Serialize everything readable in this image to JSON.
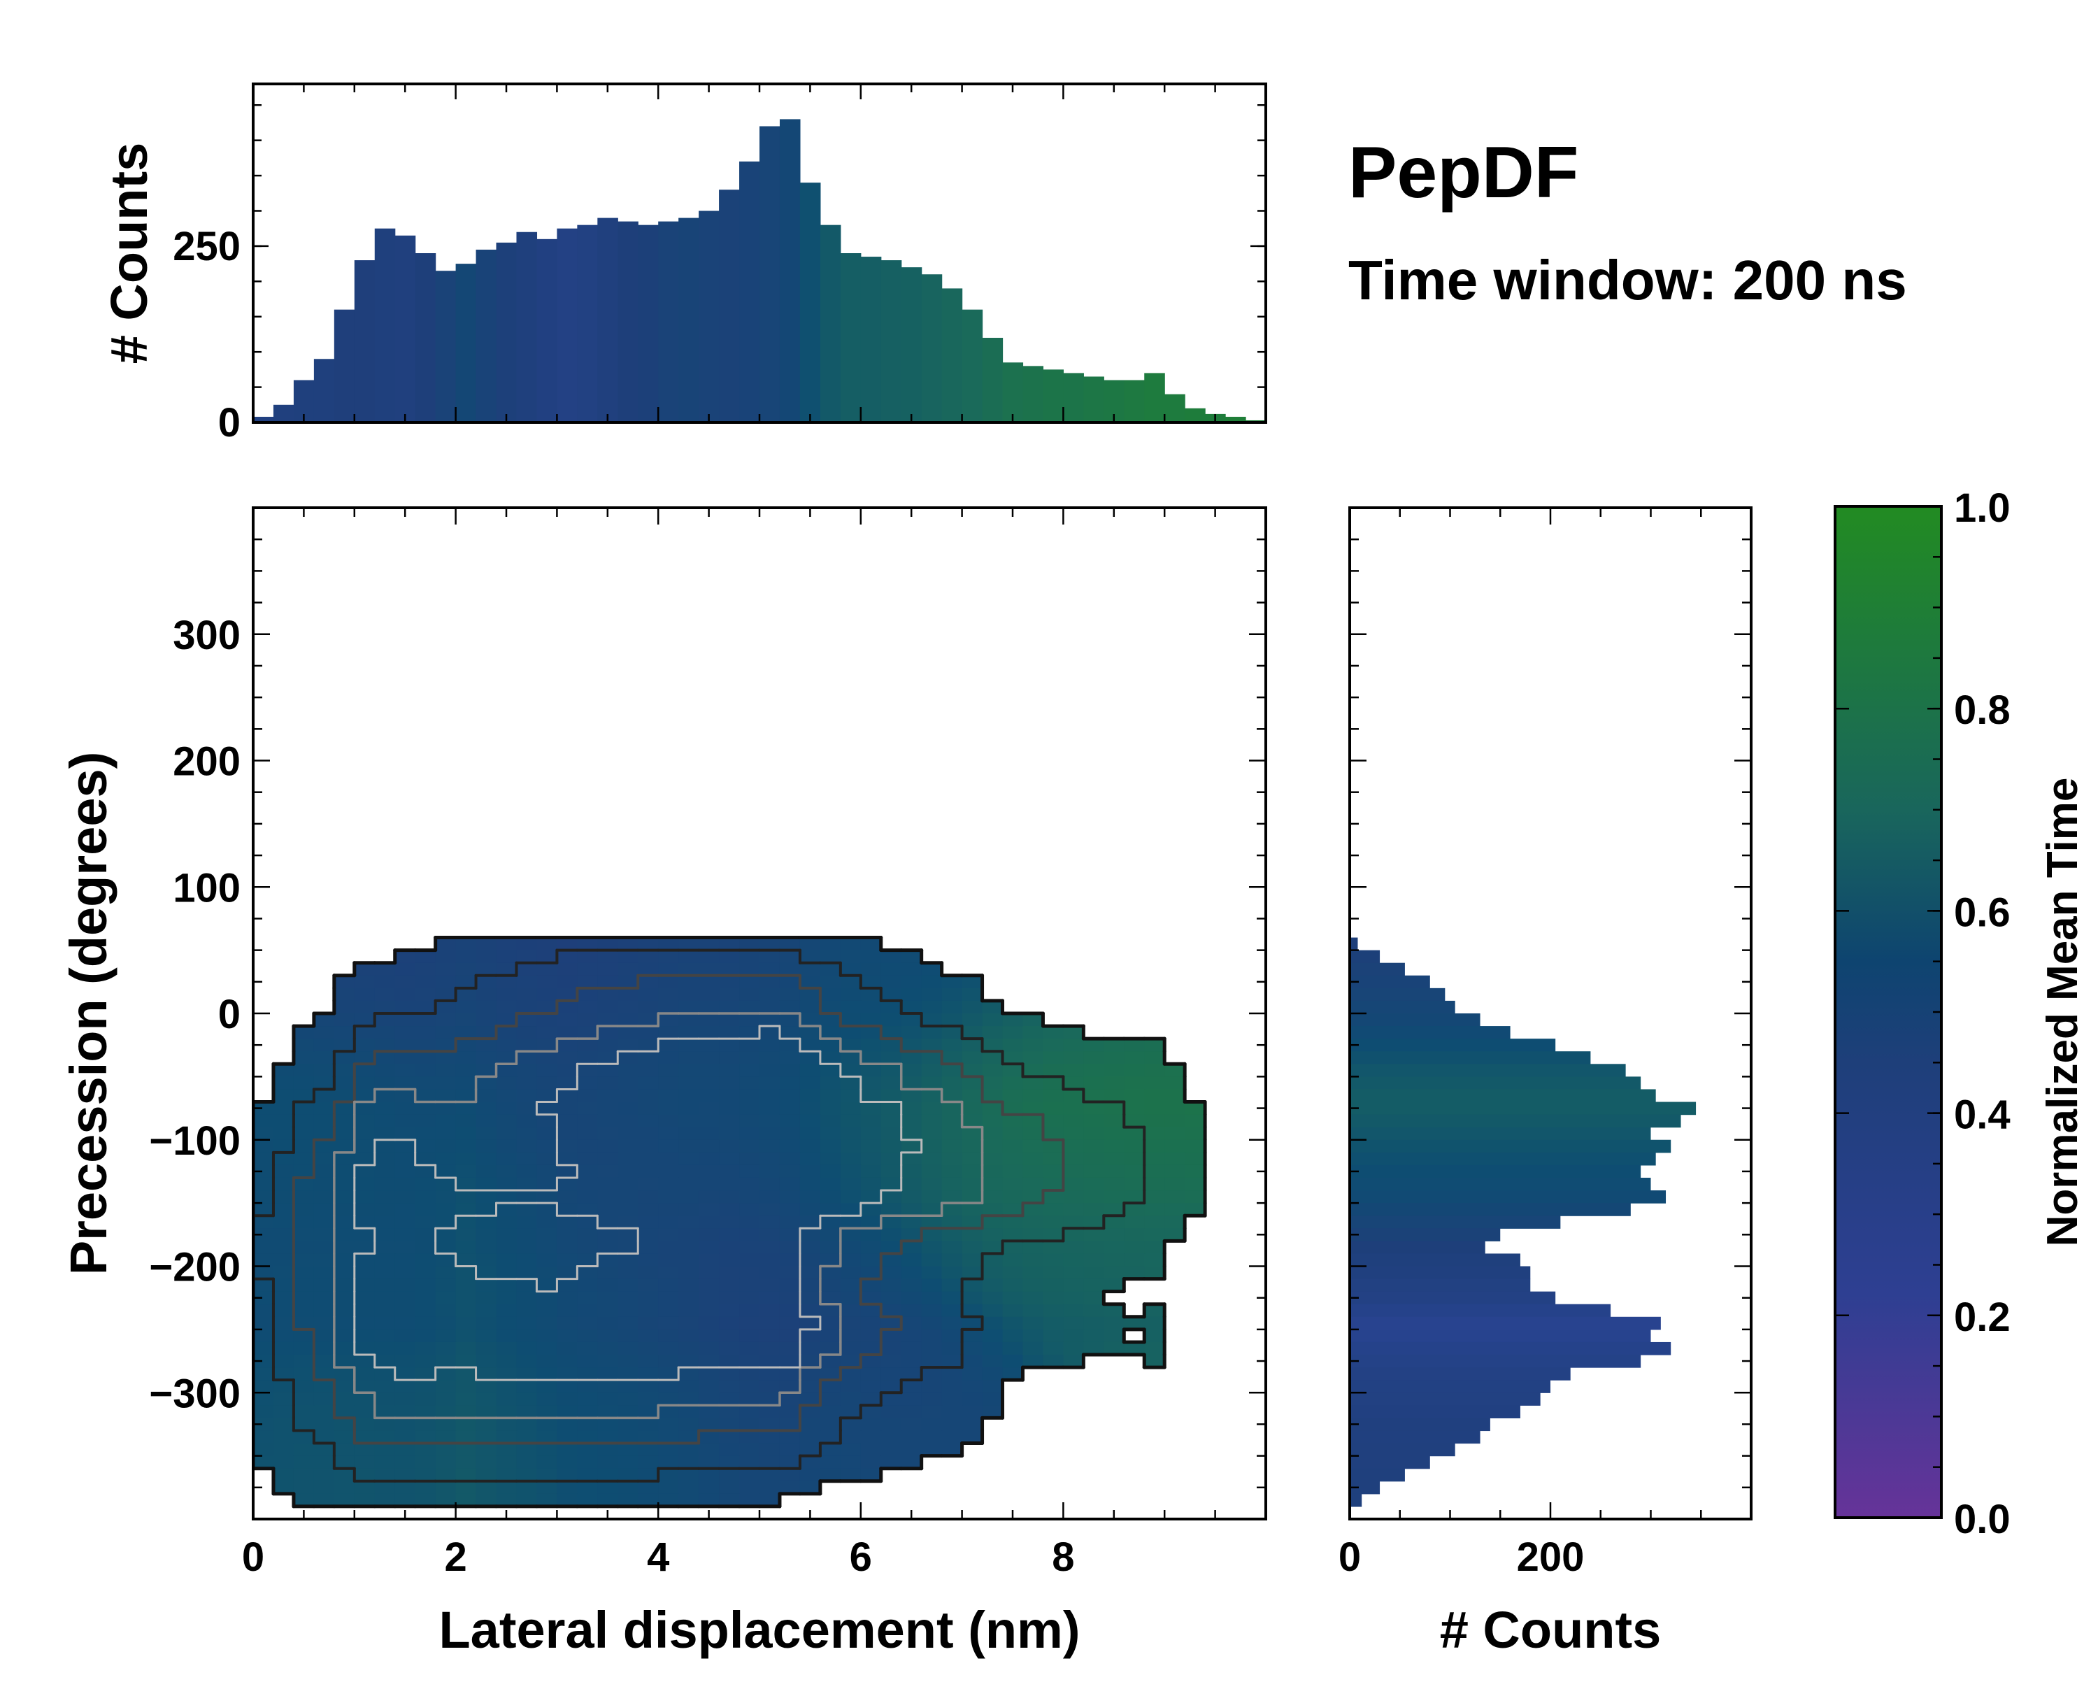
{
  "chart_data": {
    "type": "heatmap",
    "title": "PepDF",
    "subtitle": "Time window: 200 ns",
    "colormap": [
      "#663399",
      "#2a4494",
      "#1e3f7a",
      "#0e4d72",
      "#1a6a5a",
      "#228B22"
    ],
    "main": {
      "xlabel": "Lateral displacement (nm)",
      "ylabel": "Precession (degrees)",
      "xlim": [
        0,
        10
      ],
      "ylim": [
        -400,
        400
      ],
      "xticks": [
        0,
        2,
        4,
        6,
        8
      ],
      "xtick_labels": [
        "0",
        "2",
        "4",
        "6",
        "8"
      ],
      "yticks": [
        300,
        200,
        100,
        0,
        -100,
        -200,
        -300
      ],
      "ytick_labels": [
        "300",
        "200",
        "100",
        "0",
        "−100",
        "−200",
        "−300"
      ],
      "note": "2D histogram of lateral displacement vs precession colored by normalized mean time, with density contours"
    },
    "top_histogram": {
      "ylabel": "# Counts",
      "yticks": [
        0,
        250
      ],
      "ytick_labels": [
        "0",
        "250"
      ],
      "ylim": [
        0,
        480
      ],
      "bin_centers_nm": [
        0.1,
        0.3,
        0.5,
        0.7,
        0.9,
        1.1,
        1.3,
        1.5,
        1.7,
        1.9,
        2.1,
        2.3,
        2.5,
        2.7,
        2.9,
        3.1,
        3.3,
        3.5,
        3.7,
        3.9,
        4.1,
        4.3,
        4.5,
        4.7,
        4.9,
        5.1,
        5.3,
        5.5,
        5.7,
        5.9,
        6.1,
        6.3,
        6.5,
        6.7,
        6.9,
        7.1,
        7.3,
        7.5,
        7.7,
        7.9,
        8.1,
        8.3,
        8.5,
        8.7,
        8.9,
        9.1,
        9.3,
        9.5,
        9.7,
        9.9
      ],
      "counts": [
        8,
        25,
        60,
        90,
        160,
        230,
        275,
        265,
        240,
        215,
        225,
        245,
        255,
        270,
        260,
        275,
        280,
        290,
        285,
        280,
        285,
        290,
        300,
        330,
        370,
        420,
        430,
        340,
        280,
        240,
        235,
        230,
        220,
        210,
        190,
        160,
        120,
        85,
        80,
        75,
        70,
        65,
        60,
        60,
        70,
        40,
        20,
        12,
        8,
        3
      ],
      "color_values": [
        0.35,
        0.37,
        0.38,
        0.38,
        0.39,
        0.39,
        0.38,
        0.37,
        0.4,
        0.45,
        0.52,
        0.46,
        0.41,
        0.38,
        0.35,
        0.32,
        0.34,
        0.37,
        0.4,
        0.42,
        0.45,
        0.47,
        0.45,
        0.44,
        0.46,
        0.48,
        0.52,
        0.62,
        0.68,
        0.72,
        0.72,
        0.73,
        0.74,
        0.76,
        0.78,
        0.8,
        0.82,
        0.84,
        0.85,
        0.86,
        0.86,
        0.87,
        0.88,
        0.89,
        0.9,
        0.9,
        0.91,
        0.91,
        0.92,
        0.92
      ]
    },
    "right_histogram": {
      "xlabel": "# Counts",
      "xticks": [
        0,
        200
      ],
      "xtick_labels": [
        "0",
        "200"
      ],
      "xlim": [
        0,
        400
      ],
      "bin_centers_deg": [
        55,
        45,
        35,
        25,
        15,
        5,
        -5,
        -15,
        -25,
        -35,
        -45,
        -55,
        -65,
        -75,
        -85,
        -95,
        -105,
        -115,
        -125,
        -135,
        -145,
        -155,
        -165,
        -175,
        -185,
        -195,
        -205,
        -215,
        -225,
        -235,
        -245,
        -255,
        -265,
        -275,
        -285,
        -295,
        -305,
        -315,
        -325,
        -335,
        -345,
        -355,
        -365,
        -375,
        -385
      ],
      "counts": [
        8,
        30,
        55,
        80,
        95,
        105,
        130,
        160,
        205,
        240,
        275,
        290,
        305,
        345,
        330,
        300,
        320,
        305,
        290,
        300,
        315,
        280,
        210,
        150,
        135,
        170,
        180,
        180,
        205,
        260,
        310,
        300,
        320,
        290,
        220,
        200,
        190,
        170,
        140,
        130,
        105,
        80,
        55,
        30,
        12
      ],
      "color_values": [
        0.4,
        0.42,
        0.44,
        0.46,
        0.48,
        0.5,
        0.52,
        0.56,
        0.6,
        0.63,
        0.66,
        0.68,
        0.7,
        0.7,
        0.68,
        0.66,
        0.64,
        0.62,
        0.6,
        0.58,
        0.56,
        0.52,
        0.48,
        0.44,
        0.4,
        0.38,
        0.36,
        0.34,
        0.32,
        0.28,
        0.24,
        0.25,
        0.28,
        0.3,
        0.32,
        0.33,
        0.34,
        0.35,
        0.36,
        0.36,
        0.37,
        0.37,
        0.38,
        0.38,
        0.38
      ]
    },
    "colorbar": {
      "label": "Normalized Mean Time",
      "ticks": [
        0.0,
        0.2,
        0.4,
        0.6,
        0.8,
        1.0
      ],
      "tick_labels": [
        "0.0",
        "0.2",
        "0.4",
        "0.6",
        "0.8",
        "1.0"
      ],
      "range": [
        0,
        1
      ]
    }
  }
}
